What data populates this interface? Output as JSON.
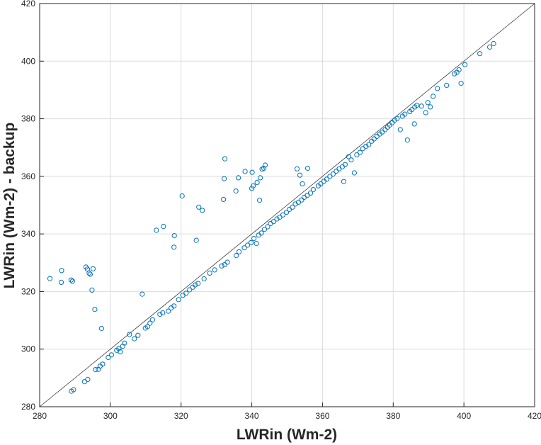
{
  "chart_data": {
    "type": "scatter",
    "title": "",
    "xlabel": "LWRin (Wm-2)",
    "ylabel": "LWRin (Wm-2) - backup",
    "xlim": [
      280,
      420
    ],
    "ylim": [
      280,
      420
    ],
    "xticks": [
      "280",
      "300",
      "320",
      "340",
      "360",
      "380",
      "400",
      "420"
    ],
    "yticks": [
      "280",
      "300",
      "320",
      "340",
      "360",
      "380",
      "400",
      "420"
    ],
    "grid": true,
    "legend": "none",
    "reference_line": "1:1",
    "marker": "open-circle",
    "marker_color": "#0072BD",
    "series": [
      {
        "points": [
          [
            282.9,
            324.5
          ],
          [
            286.2,
            327.3
          ],
          [
            286.1,
            323.2
          ],
          [
            288.9,
            324.0
          ],
          [
            289.3,
            323.6
          ],
          [
            293.1,
            328.5
          ],
          [
            293.5,
            327.8
          ],
          [
            294.0,
            326.4
          ],
          [
            294.3,
            326.0
          ],
          [
            295.1,
            327.9
          ],
          [
            294.8,
            320.5
          ],
          [
            295.6,
            313.8
          ],
          [
            297.5,
            307.2
          ],
          [
            309.0,
            319.1
          ],
          [
            313.0,
            341.3
          ],
          [
            315.0,
            342.6
          ],
          [
            318.1,
            339.4
          ],
          [
            318.0,
            335.4
          ],
          [
            320.3,
            353.2
          ],
          [
            324.3,
            337.8
          ],
          [
            325.0,
            349.3
          ],
          [
            326.0,
            348.2
          ],
          [
            332.2,
            359.2
          ],
          [
            332.4,
            366.1
          ],
          [
            332.0,
            352.0
          ],
          [
            335.5,
            354.9
          ],
          [
            336.2,
            359.5
          ],
          [
            338.1,
            361.7
          ],
          [
            340.1,
            361.4
          ],
          [
            340.0,
            355.8
          ],
          [
            340.4,
            356.7
          ],
          [
            341.5,
            357.9
          ],
          [
            342.2,
            351.7
          ],
          [
            342.4,
            359.5
          ],
          [
            342.9,
            362.5
          ],
          [
            343.4,
            362.8
          ],
          [
            343.8,
            363.9
          ],
          [
            352.8,
            362.6
          ],
          [
            353.6,
            360.4
          ],
          [
            354.3,
            357.4
          ],
          [
            355.8,
            362.8
          ],
          [
            289.0,
            285.4
          ],
          [
            289.6,
            285.9
          ],
          [
            292.7,
            288.7
          ],
          [
            293.6,
            289.5
          ],
          [
            295.8,
            292.9
          ],
          [
            296.6,
            293.0
          ],
          [
            297.1,
            294.1
          ],
          [
            297.8,
            294.8
          ],
          [
            299.4,
            297.1
          ],
          [
            300.3,
            298.0
          ],
          [
            301.8,
            299.6
          ],
          [
            302.4,
            300.2
          ],
          [
            302.8,
            299.1
          ],
          [
            303.5,
            301.0
          ],
          [
            304.0,
            302.1
          ],
          [
            305.4,
            305.1
          ],
          [
            306.8,
            303.6
          ],
          [
            307.8,
            304.8
          ],
          [
            309.9,
            307.3
          ],
          [
            310.5,
            307.8
          ],
          [
            311.2,
            309.0
          ],
          [
            311.9,
            310.2
          ],
          [
            314.0,
            312.1
          ],
          [
            314.8,
            312.6
          ],
          [
            316.4,
            313.2
          ],
          [
            317.2,
            314.3
          ],
          [
            318.0,
            315.0
          ],
          [
            319.3,
            317.2
          ],
          [
            320.5,
            318.7
          ],
          [
            321.4,
            319.4
          ],
          [
            322.4,
            320.6
          ],
          [
            323.3,
            321.5
          ],
          [
            324.0,
            322.3
          ],
          [
            324.8,
            322.8
          ],
          [
            326.5,
            324.4
          ],
          [
            328.1,
            326.4
          ],
          [
            329.5,
            327.5
          ],
          [
            331.5,
            328.9
          ],
          [
            332.3,
            329.3
          ],
          [
            333.1,
            330.2
          ],
          [
            335.6,
            332.5
          ],
          [
            336.4,
            333.8
          ],
          [
            337.9,
            335.2
          ],
          [
            338.8,
            336.1
          ],
          [
            339.8,
            337.0
          ],
          [
            340.6,
            338.4
          ],
          [
            341.3,
            336.7
          ],
          [
            341.9,
            339.6
          ],
          [
            342.7,
            340.3
          ],
          [
            343.6,
            341.6
          ],
          [
            344.5,
            342.5
          ],
          [
            345.3,
            343.6
          ],
          [
            346.2,
            344.3
          ],
          [
            347.1,
            345.2
          ],
          [
            347.9,
            345.8
          ],
          [
            348.8,
            346.6
          ],
          [
            349.8,
            347.5
          ],
          [
            350.6,
            348.5
          ],
          [
            351.5,
            349.3
          ],
          [
            352.3,
            350.4
          ],
          [
            353.2,
            351.0
          ],
          [
            354.1,
            351.8
          ],
          [
            354.8,
            352.7
          ],
          [
            355.7,
            353.4
          ],
          [
            356.6,
            354.2
          ],
          [
            357.4,
            355.4
          ],
          [
            358.8,
            356.7
          ],
          [
            359.5,
            357.4
          ],
          [
            360.4,
            358.3
          ],
          [
            361.2,
            359.0
          ],
          [
            362.1,
            360.0
          ],
          [
            363.0,
            360.8
          ],
          [
            363.9,
            361.8
          ],
          [
            364.7,
            362.6
          ],
          [
            365.6,
            363.3
          ],
          [
            366.4,
            364.1
          ],
          [
            366.0,
            358.2
          ],
          [
            367.4,
            366.8
          ],
          [
            368.1,
            365.7
          ],
          [
            369.0,
            361.2
          ],
          [
            369.7,
            367.5
          ],
          [
            370.6,
            368.3
          ],
          [
            371.4,
            369.6
          ],
          [
            372.3,
            370.4
          ],
          [
            373.1,
            371.0
          ],
          [
            373.9,
            372.2
          ],
          [
            374.6,
            373.0
          ],
          [
            375.4,
            373.9
          ],
          [
            376.2,
            374.7
          ],
          [
            376.9,
            375.4
          ],
          [
            377.7,
            376.2
          ],
          [
            378.4,
            377.1
          ],
          [
            379.0,
            377.8
          ],
          [
            379.7,
            378.6
          ],
          [
            380.4,
            379.5
          ],
          [
            381.1,
            380.1
          ],
          [
            382.0,
            376.2
          ],
          [
            382.6,
            380.9
          ],
          [
            383.3,
            381.6
          ],
          [
            384.0,
            372.6
          ],
          [
            384.7,
            382.5
          ],
          [
            385.3,
            383.2
          ],
          [
            386.0,
            378.2
          ],
          [
            386.1,
            384.1
          ],
          [
            386.7,
            384.7
          ],
          [
            388.0,
            384.4
          ],
          [
            389.2,
            382.1
          ],
          [
            389.8,
            385.6
          ],
          [
            390.5,
            384.1
          ],
          [
            391.3,
            387.8
          ],
          [
            392.5,
            390.5
          ],
          [
            395.1,
            391.6
          ],
          [
            397.3,
            395.6
          ],
          [
            398.0,
            396.1
          ],
          [
            398.6,
            397.0
          ],
          [
            399.2,
            392.3
          ],
          [
            400.3,
            398.8
          ],
          [
            404.5,
            402.6
          ],
          [
            407.3,
            404.9
          ],
          [
            408.4,
            406.1
          ]
        ]
      }
    ]
  }
}
